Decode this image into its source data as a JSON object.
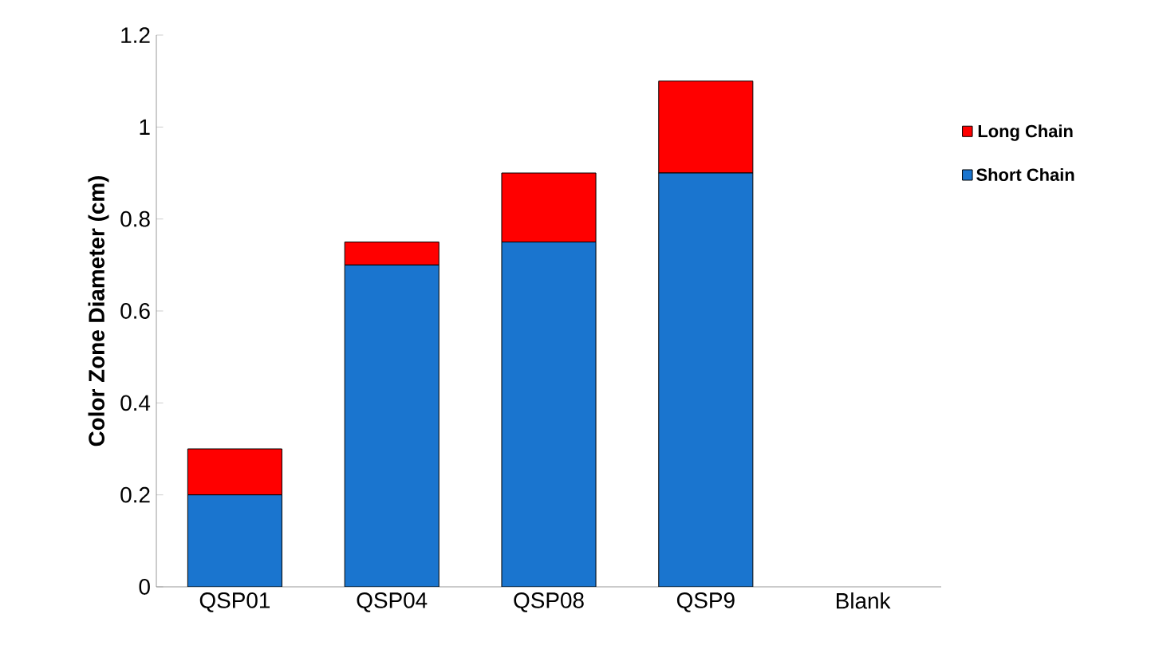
{
  "chart_data": {
    "type": "bar",
    "stacked": true,
    "ylabel": "Color Zone Diameter (cm)",
    "categories": [
      "QSP01",
      "QSP04",
      "QSP08",
      "QSP9",
      "Blank"
    ],
    "series": [
      {
        "name": "Short Chain",
        "color": "#1a75cf",
        "values": [
          0.2,
          0.7,
          0.75,
          0.9,
          null
        ]
      },
      {
        "name": "Long Chain",
        "color": "#ff0000",
        "values": [
          0.1,
          0.05,
          0.15,
          0.2,
          null
        ]
      }
    ],
    "ylim": [
      0,
      1.2
    ],
    "yticks": [
      0,
      0.2,
      0.4,
      0.6,
      0.8,
      1,
      1.2
    ],
    "grid": false,
    "legend": "right"
  }
}
